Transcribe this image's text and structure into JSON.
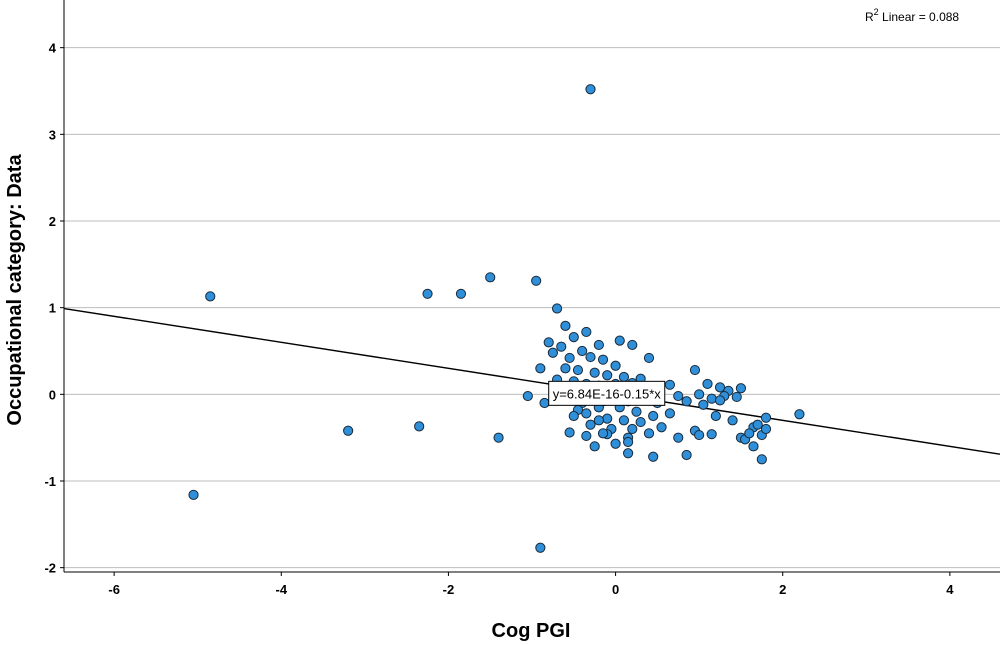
{
  "chart_data": {
    "type": "scatter",
    "xlabel": "Cog PGI",
    "ylabel": "Occupational category: Data",
    "xlim": [
      -6.6,
      4.6
    ],
    "ylim": [
      -2.05,
      4.55
    ],
    "x_ticks": [
      -6,
      -4,
      -2,
      0,
      2,
      4
    ],
    "y_ticks": [
      -2,
      -1,
      0,
      1,
      2,
      3,
      4
    ],
    "x_tick_labels": [
      "-6",
      "-4",
      "-2",
      "0",
      "2",
      "4"
    ],
    "y_tick_labels": [
      "-2",
      "-1",
      "0",
      "1",
      "2",
      "3",
      "4"
    ],
    "grid": "horizontal",
    "point_color": "#2f8fd8",
    "point_edge_color": "#1a2a3a",
    "fit_line": {
      "intercept": 0.0,
      "slope": -0.15,
      "equation_label": "y=6.84E-16-0.15*x",
      "label_x": -0.8,
      "label_y": 0.15
    },
    "r2_label": {
      "prefix": "R",
      "sup": "2",
      "text": " Linear = 0.088"
    },
    "points": [
      [
        -0.3,
        3.52
      ],
      [
        -0.9,
        -1.77
      ],
      [
        -5.05,
        -1.16
      ],
      [
        -4.85,
        1.13
      ],
      [
        -3.2,
        -0.42
      ],
      [
        -2.35,
        -0.37
      ],
      [
        -1.4,
        -0.5
      ],
      [
        -2.25,
        1.16
      ],
      [
        -1.85,
        1.16
      ],
      [
        -1.5,
        1.35
      ],
      [
        -0.95,
        1.31
      ],
      [
        -0.7,
        0.99
      ],
      [
        -0.6,
        0.79
      ],
      [
        -0.35,
        0.72
      ],
      [
        -0.5,
        0.66
      ],
      [
        -0.8,
        0.6
      ],
      [
        -0.65,
        0.55
      ],
      [
        -0.2,
        0.57
      ],
      [
        0.05,
        0.62
      ],
      [
        0.2,
        0.57
      ],
      [
        -0.75,
        0.48
      ],
      [
        -0.4,
        0.5
      ],
      [
        -0.55,
        0.42
      ],
      [
        -0.3,
        0.43
      ],
      [
        -0.15,
        0.4
      ],
      [
        0.4,
        0.42
      ],
      [
        0.0,
        0.33
      ],
      [
        -0.9,
        0.3
      ],
      [
        -0.6,
        0.3
      ],
      [
        -0.45,
        0.28
      ],
      [
        -0.25,
        0.25
      ],
      [
        -0.1,
        0.22
      ],
      [
        0.1,
        0.2
      ],
      [
        0.3,
        0.18
      ],
      [
        -0.7,
        0.17
      ],
      [
        -0.5,
        0.15
      ],
      [
        -0.35,
        0.12
      ],
      [
        -0.2,
        0.1
      ],
      [
        0.0,
        0.12
      ],
      [
        0.2,
        0.13
      ],
      [
        0.45,
        0.08
      ],
      [
        0.65,
        0.11
      ],
      [
        0.95,
        0.28
      ],
      [
        1.1,
        0.12
      ],
      [
        1.25,
        0.08
      ],
      [
        1.35,
        0.04
      ],
      [
        1.5,
        0.07
      ],
      [
        1.0,
        0.0
      ],
      [
        1.15,
        -0.05
      ],
      [
        1.3,
        -0.02
      ],
      [
        1.45,
        -0.03
      ],
      [
        0.75,
        -0.02
      ],
      [
        0.85,
        -0.08
      ],
      [
        1.05,
        -0.12
      ],
      [
        -1.05,
        -0.02
      ],
      [
        -0.85,
        -0.1
      ],
      [
        -0.6,
        -0.05
      ],
      [
        -0.4,
        -0.1
      ],
      [
        -0.3,
        -0.05
      ],
      [
        -0.15,
        -0.08
      ],
      [
        0.05,
        -0.02
      ],
      [
        0.15,
        -0.08
      ],
      [
        0.3,
        -0.05
      ],
      [
        0.5,
        -0.1
      ],
      [
        -0.45,
        -0.18
      ],
      [
        -0.2,
        -0.15
      ],
      [
        0.05,
        -0.15
      ],
      [
        0.25,
        -0.2
      ],
      [
        0.45,
        -0.25
      ],
      [
        0.65,
        -0.22
      ],
      [
        -0.5,
        -0.25
      ],
      [
        -0.35,
        -0.22
      ],
      [
        -0.1,
        -0.28
      ],
      [
        0.1,
        -0.3
      ],
      [
        0.3,
        -0.32
      ],
      [
        0.55,
        -0.38
      ],
      [
        1.2,
        -0.25
      ],
      [
        1.4,
        -0.3
      ],
      [
        1.8,
        -0.27
      ],
      [
        2.2,
        -0.23
      ],
      [
        -0.3,
        -0.35
      ],
      [
        -0.05,
        -0.4
      ],
      [
        0.2,
        -0.4
      ],
      [
        0.4,
        -0.45
      ],
      [
        0.75,
        -0.5
      ],
      [
        0.95,
        -0.42
      ],
      [
        1.0,
        -0.47
      ],
      [
        1.15,
        -0.46
      ],
      [
        1.5,
        -0.5
      ],
      [
        1.55,
        -0.52
      ],
      [
        1.65,
        -0.38
      ],
      [
        1.7,
        -0.35
      ],
      [
        1.75,
        -0.47
      ],
      [
        1.8,
        -0.4
      ],
      [
        -0.55,
        -0.44
      ],
      [
        -0.35,
        -0.48
      ],
      [
        -0.1,
        -0.46
      ],
      [
        0.15,
        -0.5
      ],
      [
        1.65,
        -0.6
      ],
      [
        1.75,
        -0.75
      ],
      [
        -0.25,
        -0.6
      ],
      [
        0.0,
        -0.57
      ],
      [
        0.15,
        -0.68
      ],
      [
        0.45,
        -0.72
      ],
      [
        0.85,
        -0.7
      ],
      [
        -0.2,
        -0.3
      ],
      [
        0.15,
        -0.55
      ],
      [
        -0.15,
        -0.45
      ],
      [
        0.1,
        0.0
      ],
      [
        -0.05,
        0.05
      ],
      [
        0.2,
        0.02
      ],
      [
        -0.25,
        0.02
      ],
      [
        1.25,
        -0.07
      ],
      [
        1.6,
        -0.45
      ]
    ]
  }
}
